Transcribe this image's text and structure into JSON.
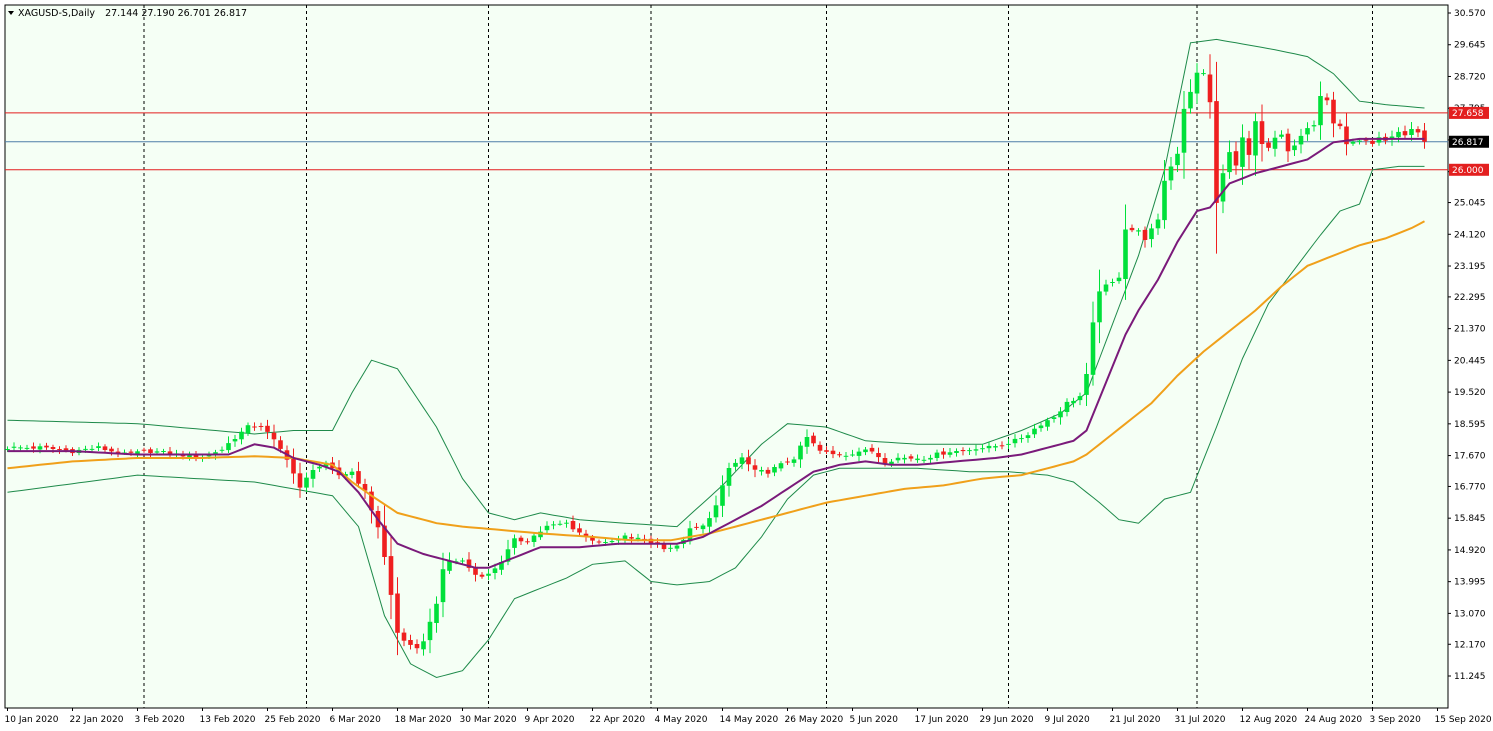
{
  "header": {
    "symbol": "XAGUSD-S,Daily",
    "ohlc": "27.144 27.190 26.701 26.817"
  },
  "colors": {
    "background": "#ffffff",
    "plot_background": "#f5fff5",
    "bull_candle": "#00e03a",
    "bear_candle": "#ef1f1f",
    "bollinger": "#1e8a4a",
    "ma_fast": "#7a1a7a",
    "ma_slow": "#f0a01a",
    "hline_red": "#e31f1f",
    "bid_line": "#4f7fa8",
    "price_tag": "#000000"
  },
  "chart_data": {
    "type": "candlestick",
    "title": "XAGUSD-S,Daily",
    "ylim": [
      11.245,
      30.57
    ],
    "y_ticks": [
      "30.570",
      "29.645",
      "28.720",
      "27.795",
      "26.870",
      "25.945",
      "25.045",
      "24.120",
      "23.195",
      "22.295",
      "21.370",
      "20.445",
      "19.520",
      "18.595",
      "17.670",
      "16.770",
      "15.845",
      "14.920",
      "13.995",
      "13.070",
      "12.170",
      "11.245"
    ],
    "x_labels": [
      "10 Jan 2020",
      "22 Jan 2020",
      "3 Feb 2020",
      "13 Feb 2020",
      "25 Feb 2020",
      "6 Mar 2020",
      "18 Mar 2020",
      "30 Mar 2020",
      "9 Apr 2020",
      "22 Apr 2020",
      "4 May 2020",
      "14 May 2020",
      "26 May 2020",
      "5 Jun 2020",
      "17 Jun 2020",
      "29 Jun 2020",
      "9 Jul 2020",
      "21 Jul 2020",
      "31 Jul 2020",
      "12 Aug 2020",
      "24 Aug 2020",
      "3 Sep 2020",
      "15 Sep 2020"
    ],
    "label_bars": [
      0,
      10,
      20,
      30,
      40,
      50,
      60,
      70,
      80,
      90,
      100,
      110,
      120,
      130,
      140,
      150,
      160,
      170,
      180,
      190,
      200,
      210,
      220
    ],
    "separator_bars": [
      21,
      46,
      74,
      99,
      126,
      154,
      183,
      210
    ],
    "horizontal_lines": [
      {
        "value": 27.658,
        "label": "27.658",
        "color": "#e31f1f"
      },
      {
        "value": 26.0,
        "label": "26.000",
        "color": "#e31f1f"
      }
    ],
    "current_price": {
      "value": 26.817,
      "label": "26.817"
    },
    "anchors": [
      {
        "bar": 0,
        "c": 17.9
      },
      {
        "bar": 5,
        "c": 17.9
      },
      {
        "bar": 10,
        "c": 17.8
      },
      {
        "bar": 14,
        "c": 17.9
      },
      {
        "bar": 18,
        "c": 17.7
      },
      {
        "bar": 22,
        "c": 17.8
      },
      {
        "bar": 26,
        "c": 17.7
      },
      {
        "bar": 30,
        "c": 17.65
      },
      {
        "bar": 33,
        "c": 17.85
      },
      {
        "bar": 35,
        "c": 18.2
      },
      {
        "bar": 37,
        "c": 18.5
      },
      {
        "bar": 39,
        "c": 18.55
      },
      {
        "bar": 41,
        "c": 18.1
      },
      {
        "bar": 43,
        "c": 17.6
      },
      {
        "bar": 45,
        "c": 16.7
      },
      {
        "bar": 47,
        "c": 17.3
      },
      {
        "bar": 49,
        "c": 17.4
      },
      {
        "bar": 51,
        "c": 17.1
      },
      {
        "bar": 53,
        "c": 17.2
      },
      {
        "bar": 55,
        "c": 16.6
      },
      {
        "bar": 57,
        "c": 15.6
      },
      {
        "bar": 58,
        "c": 14.7
      },
      {
        "bar": 59,
        "c": 13.6
      },
      {
        "bar": 60,
        "c": 12.5
      },
      {
        "bar": 61,
        "c": 12.3
      },
      {
        "bar": 62,
        "c": 12.1
      },
      {
        "bar": 63,
        "c": 12.0
      },
      {
        "bar": 64,
        "c": 12.3
      },
      {
        "bar": 65,
        "c": 12.8
      },
      {
        "bar": 66,
        "c": 13.4
      },
      {
        "bar": 67,
        "c": 14.3
      },
      {
        "bar": 68,
        "c": 14.6
      },
      {
        "bar": 70,
        "c": 14.6
      },
      {
        "bar": 72,
        "c": 14.2
      },
      {
        "bar": 74,
        "c": 14.2
      },
      {
        "bar": 76,
        "c": 14.6
      },
      {
        "bar": 78,
        "c": 15.2
      },
      {
        "bar": 80,
        "c": 15.2
      },
      {
        "bar": 83,
        "c": 15.6
      },
      {
        "bar": 86,
        "c": 15.7
      },
      {
        "bar": 89,
        "c": 15.3
      },
      {
        "bar": 92,
        "c": 15.1
      },
      {
        "bar": 95,
        "c": 15.3
      },
      {
        "bar": 98,
        "c": 15.2
      },
      {
        "bar": 101,
        "c": 15.0
      },
      {
        "bar": 103,
        "c": 15.0
      },
      {
        "bar": 105,
        "c": 15.5
      },
      {
        "bar": 107,
        "c": 15.6
      },
      {
        "bar": 109,
        "c": 16.2
      },
      {
        "bar": 111,
        "c": 17.3
      },
      {
        "bar": 113,
        "c": 17.6
      },
      {
        "bar": 115,
        "c": 17.2
      },
      {
        "bar": 117,
        "c": 17.2
      },
      {
        "bar": 119,
        "c": 17.4
      },
      {
        "bar": 121,
        "c": 17.6
      },
      {
        "bar": 123,
        "c": 18.2
      },
      {
        "bar": 125,
        "c": 17.8
      },
      {
        "bar": 127,
        "c": 17.7
      },
      {
        "bar": 129,
        "c": 17.7
      },
      {
        "bar": 131,
        "c": 17.8
      },
      {
        "bar": 133,
        "c": 17.8
      },
      {
        "bar": 135,
        "c": 17.5
      },
      {
        "bar": 137,
        "c": 17.6
      },
      {
        "bar": 139,
        "c": 17.6
      },
      {
        "bar": 141,
        "c": 17.6
      },
      {
        "bar": 143,
        "c": 17.7
      },
      {
        "bar": 145,
        "c": 17.8
      },
      {
        "bar": 147,
        "c": 17.8
      },
      {
        "bar": 149,
        "c": 17.9
      },
      {
        "bar": 151,
        "c": 17.9
      },
      {
        "bar": 153,
        "c": 18.0
      },
      {
        "bar": 155,
        "c": 18.1
      },
      {
        "bar": 157,
        "c": 18.3
      },
      {
        "bar": 159,
        "c": 18.6
      },
      {
        "bar": 161,
        "c": 18.8
      },
      {
        "bar": 163,
        "c": 19.2
      },
      {
        "bar": 165,
        "c": 19.4
      },
      {
        "bar": 166,
        "c": 20.0
      },
      {
        "bar": 167,
        "c": 21.5
      },
      {
        "bar": 168,
        "c": 22.5
      },
      {
        "bar": 170,
        "c": 22.7
      },
      {
        "bar": 171,
        "c": 22.9
      },
      {
        "bar": 172,
        "c": 24.3
      },
      {
        "bar": 174,
        "c": 24.2
      },
      {
        "bar": 175,
        "c": 24.0
      },
      {
        "bar": 177,
        "c": 24.5
      },
      {
        "bar": 178,
        "c": 25.7
      },
      {
        "bar": 180,
        "c": 26.5
      },
      {
        "bar": 181,
        "c": 27.8
      },
      {
        "bar": 182,
        "c": 28.3
      },
      {
        "bar": 183,
        "c": 28.8
      },
      {
        "bar": 184,
        "c": 28.8
      },
      {
        "bar": 185,
        "c": 28.0
      },
      {
        "bar": 186,
        "c": 25.0
      },
      {
        "bar": 187,
        "c": 25.9
      },
      {
        "bar": 188,
        "c": 26.5
      },
      {
        "bar": 189,
        "c": 26.1
      },
      {
        "bar": 190,
        "c": 27.0
      },
      {
        "bar": 191,
        "c": 26.4
      },
      {
        "bar": 192,
        "c": 27.4
      },
      {
        "bar": 193,
        "c": 26.7
      },
      {
        "bar": 194,
        "c": 26.6
      },
      {
        "bar": 195,
        "c": 26.9
      },
      {
        "bar": 196,
        "c": 27.0
      },
      {
        "bar": 197,
        "c": 26.5
      },
      {
        "bar": 198,
        "c": 26.7
      },
      {
        "bar": 199,
        "c": 27.0
      },
      {
        "bar": 200,
        "c": 27.2
      },
      {
        "bar": 201,
        "c": 27.3
      },
      {
        "bar": 202,
        "c": 28.1
      },
      {
        "bar": 203,
        "c": 28.0
      },
      {
        "bar": 204,
        "c": 27.4
      },
      {
        "bar": 205,
        "c": 27.3
      },
      {
        "bar": 206,
        "c": 26.7
      },
      {
        "bar": 207,
        "c": 26.8
      },
      {
        "bar": 208,
        "c": 26.8
      },
      {
        "bar": 209,
        "c": 26.9
      },
      {
        "bar": 210,
        "c": 26.8
      },
      {
        "bar": 211,
        "c": 27.0
      },
      {
        "bar": 212,
        "c": 26.9
      },
      {
        "bar": 213,
        "c": 27.0
      },
      {
        "bar": 214,
        "c": 27.1
      },
      {
        "bar": 215,
        "c": 27.0
      },
      {
        "bar": 216,
        "c": 27.2
      },
      {
        "bar": 217,
        "c": 27.1
      },
      {
        "bar": 218,
        "c": 26.82
      }
    ],
    "bollinger_upper": [
      [
        0,
        18.7
      ],
      [
        20,
        18.6
      ],
      [
        38,
        18.3
      ],
      [
        44,
        18.4
      ],
      [
        50,
        18.4
      ],
      [
        53,
        19.5
      ],
      [
        56,
        20.45
      ],
      [
        60,
        20.2
      ],
      [
        66,
        18.5
      ],
      [
        70,
        17.0
      ],
      [
        74,
        16.0
      ],
      [
        78,
        15.8
      ],
      [
        82,
        16.0
      ],
      [
        88,
        15.8
      ],
      [
        95,
        15.7
      ],
      [
        103,
        15.6
      ],
      [
        110,
        16.8
      ],
      [
        116,
        18.0
      ],
      [
        120,
        18.6
      ],
      [
        126,
        18.5
      ],
      [
        132,
        18.1
      ],
      [
        140,
        18.0
      ],
      [
        150,
        18.0
      ],
      [
        156,
        18.4
      ],
      [
        162,
        18.9
      ],
      [
        166,
        19.5
      ],
      [
        170,
        21.5
      ],
      [
        174,
        23.5
      ],
      [
        178,
        26.0
      ],
      [
        182,
        29.7
      ],
      [
        186,
        29.8
      ],
      [
        195,
        29.5
      ],
      [
        200,
        29.3
      ],
      [
        204,
        28.8
      ],
      [
        208,
        28.0
      ],
      [
        212,
        27.9
      ],
      [
        218,
        27.8
      ]
    ],
    "bollinger_lower": [
      [
        0,
        16.6
      ],
      [
        20,
        17.1
      ],
      [
        38,
        16.9
      ],
      [
        44,
        16.7
      ],
      [
        50,
        16.5
      ],
      [
        54,
        15.6
      ],
      [
        58,
        13.0
      ],
      [
        62,
        11.6
      ],
      [
        66,
        11.2
      ],
      [
        70,
        11.4
      ],
      [
        74,
        12.3
      ],
      [
        78,
        13.5
      ],
      [
        82,
        13.8
      ],
      [
        86,
        14.1
      ],
      [
        90,
        14.5
      ],
      [
        95,
        14.6
      ],
      [
        99,
        14.0
      ],
      [
        103,
        13.9
      ],
      [
        108,
        14.0
      ],
      [
        112,
        14.4
      ],
      [
        116,
        15.3
      ],
      [
        120,
        16.4
      ],
      [
        124,
        17.1
      ],
      [
        128,
        17.3
      ],
      [
        134,
        17.3
      ],
      [
        140,
        17.3
      ],
      [
        148,
        17.2
      ],
      [
        154,
        17.2
      ],
      [
        160,
        17.1
      ],
      [
        164,
        16.9
      ],
      [
        168,
        16.3
      ],
      [
        171,
        15.8
      ],
      [
        174,
        15.7
      ],
      [
        178,
        16.4
      ],
      [
        182,
        16.6
      ],
      [
        186,
        18.5
      ],
      [
        190,
        20.5
      ],
      [
        194,
        22.1
      ],
      [
        198,
        23.1
      ],
      [
        202,
        24.1
      ],
      [
        205,
        24.8
      ],
      [
        208,
        25.0
      ],
      [
        210,
        26.0
      ],
      [
        214,
        26.1
      ],
      [
        218,
        26.1
      ]
    ],
    "ma_fast": [
      [
        0,
        17.8
      ],
      [
        10,
        17.8
      ],
      [
        20,
        17.7
      ],
      [
        28,
        17.7
      ],
      [
        34,
        17.7
      ],
      [
        38,
        18.0
      ],
      [
        41,
        17.9
      ],
      [
        44,
        17.6
      ],
      [
        48,
        17.4
      ],
      [
        51,
        17.2
      ],
      [
        54,
        16.6
      ],
      [
        57,
        15.8
      ],
      [
        60,
        15.1
      ],
      [
        64,
        14.8
      ],
      [
        68,
        14.6
      ],
      [
        72,
        14.4
      ],
      [
        74,
        14.4
      ],
      [
        78,
        14.7
      ],
      [
        82,
        15.0
      ],
      [
        88,
        15.0
      ],
      [
        94,
        15.1
      ],
      [
        99,
        15.1
      ],
      [
        103,
        15.1
      ],
      [
        107,
        15.3
      ],
      [
        112,
        15.8
      ],
      [
        116,
        16.2
      ],
      [
        120,
        16.7
      ],
      [
        124,
        17.2
      ],
      [
        128,
        17.4
      ],
      [
        132,
        17.5
      ],
      [
        136,
        17.4
      ],
      [
        140,
        17.4
      ],
      [
        146,
        17.5
      ],
      [
        152,
        17.6
      ],
      [
        156,
        17.7
      ],
      [
        160,
        17.9
      ],
      [
        164,
        18.1
      ],
      [
        166,
        18.4
      ],
      [
        169,
        19.8
      ],
      [
        172,
        21.2
      ],
      [
        174,
        21.9
      ],
      [
        177,
        22.8
      ],
      [
        180,
        23.9
      ],
      [
        183,
        24.8
      ],
      [
        185,
        24.9
      ],
      [
        188,
        25.6
      ],
      [
        192,
        25.9
      ],
      [
        196,
        26.1
      ],
      [
        200,
        26.3
      ],
      [
        204,
        26.8
      ],
      [
        208,
        26.9
      ],
      [
        212,
        26.9
      ],
      [
        216,
        26.9
      ],
      [
        218,
        26.9
      ]
    ],
    "ma_slow": [
      [
        0,
        17.3
      ],
      [
        10,
        17.5
      ],
      [
        20,
        17.6
      ],
      [
        30,
        17.6
      ],
      [
        38,
        17.65
      ],
      [
        44,
        17.6
      ],
      [
        50,
        17.4
      ],
      [
        53,
        16.9
      ],
      [
        56,
        16.5
      ],
      [
        60,
        16.0
      ],
      [
        66,
        15.7
      ],
      [
        70,
        15.6
      ],
      [
        76,
        15.5
      ],
      [
        82,
        15.4
      ],
      [
        90,
        15.3
      ],
      [
        96,
        15.2
      ],
      [
        102,
        15.2
      ],
      [
        108,
        15.4
      ],
      [
        114,
        15.7
      ],
      [
        120,
        16.0
      ],
      [
        126,
        16.3
      ],
      [
        132,
        16.5
      ],
      [
        138,
        16.7
      ],
      [
        144,
        16.8
      ],
      [
        150,
        17.0
      ],
      [
        156,
        17.1
      ],
      [
        160,
        17.3
      ],
      [
        164,
        17.5
      ],
      [
        166,
        17.7
      ],
      [
        170,
        18.3
      ],
      [
        176,
        19.2
      ],
      [
        180,
        20.0
      ],
      [
        184,
        20.7
      ],
      [
        188,
        21.3
      ],
      [
        192,
        21.9
      ],
      [
        196,
        22.6
      ],
      [
        200,
        23.2
      ],
      [
        204,
        23.5
      ],
      [
        208,
        23.8
      ],
      [
        212,
        24.0
      ],
      [
        216,
        24.3
      ],
      [
        218,
        24.5
      ]
    ]
  }
}
